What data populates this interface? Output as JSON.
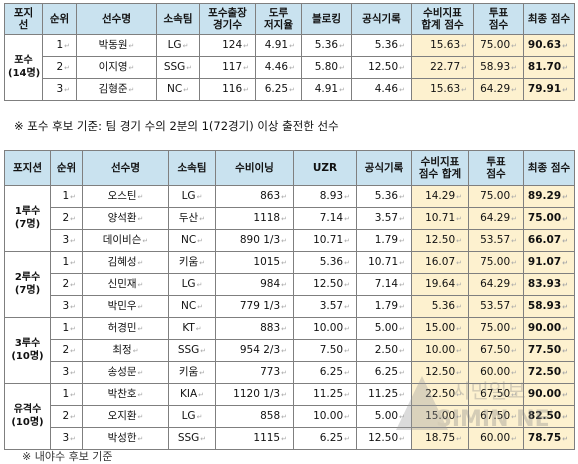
{
  "table1": {
    "headers": [
      [
        "포지",
        "선"
      ],
      [
        "순위",
        ""
      ],
      [
        "선수명",
        ""
      ],
      [
        "소속팀",
        ""
      ],
      [
        "포수출장",
        "경기수"
      ],
      [
        "도루",
        "저지율"
      ],
      [
        "블로킹",
        ""
      ],
      [
        "공식기록",
        ""
      ],
      [
        "수비지표",
        "합계 점수"
      ],
      [
        "투표",
        "점수"
      ],
      [
        "최종 점수",
        ""
      ]
    ],
    "group": {
      "line1": "포수",
      "line2": "(14명)"
    },
    "rows": [
      {
        "rank": "1",
        "name": "박동원",
        "team": "LG",
        "games": "124",
        "sb": "4.91",
        "block": "5.36",
        "official": "5.36",
        "def": "15.63",
        "vote": "75.00",
        "final": "90.63"
      },
      {
        "rank": "2",
        "name": "이지영",
        "team": "SSG",
        "games": "117",
        "sb": "4.46",
        "block": "5.80",
        "official": "12.50",
        "def": "22.77",
        "vote": "58.93",
        "final": "81.70"
      },
      {
        "rank": "3",
        "name": "김형준",
        "team": "NC",
        "games": "116",
        "sb": "6.25",
        "block": "4.91",
        "official": "4.46",
        "def": "15.63",
        "vote": "64.29",
        "final": "79.91"
      }
    ]
  },
  "note": "※ 포수 후보 기준: 팀 경기 수의 2분의 1(72경기) 이상 출전한 선수",
  "table2": {
    "headers": [
      [
        "포지션",
        ""
      ],
      [
        "순위",
        ""
      ],
      [
        "선수명",
        ""
      ],
      [
        "소속팀",
        ""
      ],
      [
        "수비이닝",
        ""
      ],
      [
        "UZR",
        ""
      ],
      [
        "공식기록",
        ""
      ],
      [
        "수비지표",
        "점수 합계"
      ],
      [
        "투표",
        "점수"
      ],
      [
        "최종 점수",
        ""
      ]
    ],
    "groups": [
      {
        "line1": "1루수",
        "line2": "(7명)",
        "rows": [
          {
            "rank": "1",
            "name": "오스틴",
            "team": "LG",
            "inn": "863",
            "uzr": "8.93",
            "official": "5.36",
            "def": "14.29",
            "vote": "75.00",
            "final": "89.29"
          },
          {
            "rank": "2",
            "name": "양석환",
            "team": "두산",
            "inn": "1118",
            "uzr": "7.14",
            "official": "3.57",
            "def": "10.71",
            "vote": "64.29",
            "final": "75.00"
          },
          {
            "rank": "3",
            "name": "데이비슨",
            "team": "NC",
            "inn": "890 1/3",
            "uzr": "10.71",
            "official": "1.79",
            "def": "12.50",
            "vote": "53.57",
            "final": "66.07"
          }
        ]
      },
      {
        "line1": "2루수",
        "line2": "(7명)",
        "rows": [
          {
            "rank": "1",
            "name": "김혜성",
            "team": "키움",
            "inn": "1015",
            "uzr": "5.36",
            "official": "10.71",
            "def": "16.07",
            "vote": "75.00",
            "final": "91.07"
          },
          {
            "rank": "2",
            "name": "신민재",
            "team": "LG",
            "inn": "984",
            "uzr": "12.50",
            "official": "7.14",
            "def": "19.64",
            "vote": "64.29",
            "final": "83.93"
          },
          {
            "rank": "3",
            "name": "박민우",
            "team": "NC",
            "inn": "779 1/3",
            "uzr": "3.57",
            "official": "1.79",
            "def": "5.36",
            "vote": "53.57",
            "final": "58.93"
          }
        ]
      },
      {
        "line1": "3루수",
        "line2": "(10명)",
        "rows": [
          {
            "rank": "1",
            "name": "허경민",
            "team": "KT",
            "inn": "883",
            "uzr": "10.00",
            "official": "5.00",
            "def": "15.00",
            "vote": "75.00",
            "final": "90.00"
          },
          {
            "rank": "2",
            "name": "최정",
            "team": "SSG",
            "inn": "954 2/3",
            "uzr": "7.50",
            "official": "2.50",
            "def": "10.00",
            "vote": "67.50",
            "final": "77.50"
          },
          {
            "rank": "3",
            "name": "송성문",
            "team": "키움",
            "inn": "773",
            "uzr": "6.25",
            "official": "6.25",
            "def": "12.50",
            "vote": "60.00",
            "final": "72.50"
          }
        ]
      },
      {
        "line1": "유격수",
        "line2": "(10명)",
        "rows": [
          {
            "rank": "1",
            "name": "박찬호",
            "team": "KIA",
            "inn": "1120 1/3",
            "uzr": "11.25",
            "official": "11.25",
            "def": "22.50",
            "vote": "67.50",
            "final": "90.00"
          },
          {
            "rank": "2",
            "name": "오지환",
            "team": "LG",
            "inn": "858",
            "uzr": "10.00",
            "official": "5.00",
            "def": "15.00",
            "vote": "67.50",
            "final": "82.50"
          },
          {
            "rank": "3",
            "name": "박성한",
            "team": "SSG",
            "inn": "1115",
            "uzr": "6.25",
            "official": "12.50",
            "def": "18.75",
            "vote": "60.00",
            "final": "78.75"
          }
        ]
      }
    ]
  },
  "footer": "※ 내야수 후보 기준",
  "watermark": {
    "line1": "시민일보",
    "line2": "SIMIN NEWS",
    "icon": "news-logo-icon"
  },
  "colors": {
    "header": "#c9e2ef",
    "highlight": "#fdf1cf",
    "border": "#7f7f7f"
  }
}
